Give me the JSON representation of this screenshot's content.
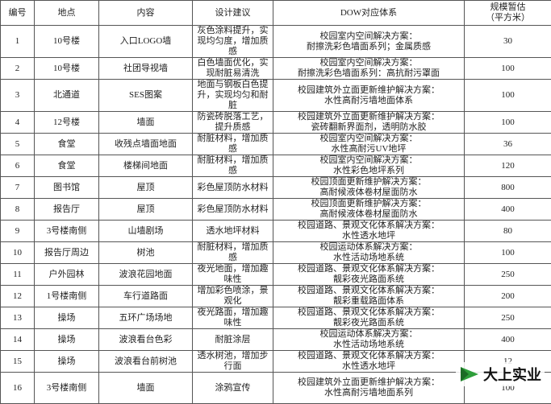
{
  "table": {
    "headers": [
      "编号",
      "地点",
      "内容",
      "设计建议",
      "DOW对应体系",
      [
        "规模暂估",
        "（平方米）"
      ]
    ],
    "rows": [
      [
        "1",
        "10号楼",
        "入口LOGO墙",
        "灰色涂料提升，实现均匀度，增加质感",
        [
          "校园室内空间解决方案：",
          "耐擦洗彩色墙面系列；金属质感"
        ],
        "30"
      ],
      [
        "2",
        "10号楼",
        "社团导视墙",
        "白色墙面优化，实现耐脏易清洗",
        [
          "校园室内空间解决方案：",
          "耐擦洗彩色墙面系列：高抗耐污罩面"
        ],
        "100"
      ],
      [
        "3",
        "北通道",
        "SES图案",
        "地面与钢板白色提升，实现均匀和耐脏",
        [
          "校园建筑外立面更新维护解决方案：",
          "水性高耐污墙地面体系"
        ],
        "100"
      ],
      [
        "4",
        "12号楼",
        "墙面",
        "防瓷砖脱落工艺，提升质感",
        [
          "校园建筑外立面更新维护解决方案：",
          "瓷砖翻新界面剂，透明防水胶"
        ],
        "100"
      ],
      [
        "5",
        "食堂",
        "收残点墙面地面",
        "耐脏材料，增加质感",
        [
          "校园室内空间解决方案：",
          "水性高耐污UV地坪"
        ],
        "36"
      ],
      [
        "6",
        "食堂",
        "楼梯间地面",
        "耐脏材料，增加质感",
        [
          "校园室内空间解决方案：",
          "水性彩色地坪系列"
        ],
        "120"
      ],
      [
        "7",
        "图书馆",
        "屋顶",
        "彩色屋顶防水材料",
        [
          "校园顶面更新维护解决方案：",
          "高耐候液体卷材屋面防水"
        ],
        "800"
      ],
      [
        "8",
        "报告厅",
        "屋顶",
        "彩色屋顶防水材料",
        [
          "校园顶面更新维护解决方案：",
          "高耐候液体卷材屋面防水"
        ],
        "400"
      ],
      [
        "9",
        "3号楼南侧",
        "山墙剧场",
        "透水地坪材料",
        [
          "校园道路、景观文化体系解决方案：",
          "水性透水地坪"
        ],
        "80"
      ],
      [
        "10",
        "报告厅周边",
        "树池",
        "耐脏材料，增加质感",
        [
          "校园运动体系解决方案：",
          "水性活动场地系统"
        ],
        "100"
      ],
      [
        "11",
        "户外园林",
        "波浪花园地面",
        "夜光地面，增加趣味性",
        [
          "校园道路、景观文化体系解决方案：",
          "靓彩夜光路面系统"
        ],
        "250"
      ],
      [
        "12",
        "1号楼南侧",
        "车行道路面",
        "增加彩色喷涂，景观化",
        [
          "校园道路、景观文化体系解决方案：",
          "靓彩重载路面体系"
        ],
        "200"
      ],
      [
        "13",
        "操场",
        "五环广场场地",
        "夜光路面，增加趣味性",
        [
          "校园道路、景观文化体系解决方案：",
          "靓彩夜光路面系统"
        ],
        "250"
      ],
      [
        "14",
        "操场",
        "波浪看台色彩",
        "耐脏涂层",
        [
          "校园运动体系解决方案：",
          "水性活动场地系统"
        ],
        "400"
      ],
      [
        "15",
        "操场",
        "波浪看台前树池",
        "透水树池，增加步行面",
        [
          "校园道路、景观文化体系解决方案：",
          "水性透水地坪"
        ],
        "12"
      ],
      [
        "16",
        "3号楼南侧",
        "墙面",
        "涂鸦宣传",
        [
          "校园建筑外立面更新维护解决方案：",
          "水性高耐污墙地面系列"
        ],
        "100"
      ]
    ]
  },
  "logo": {
    "text": "大上实业"
  }
}
